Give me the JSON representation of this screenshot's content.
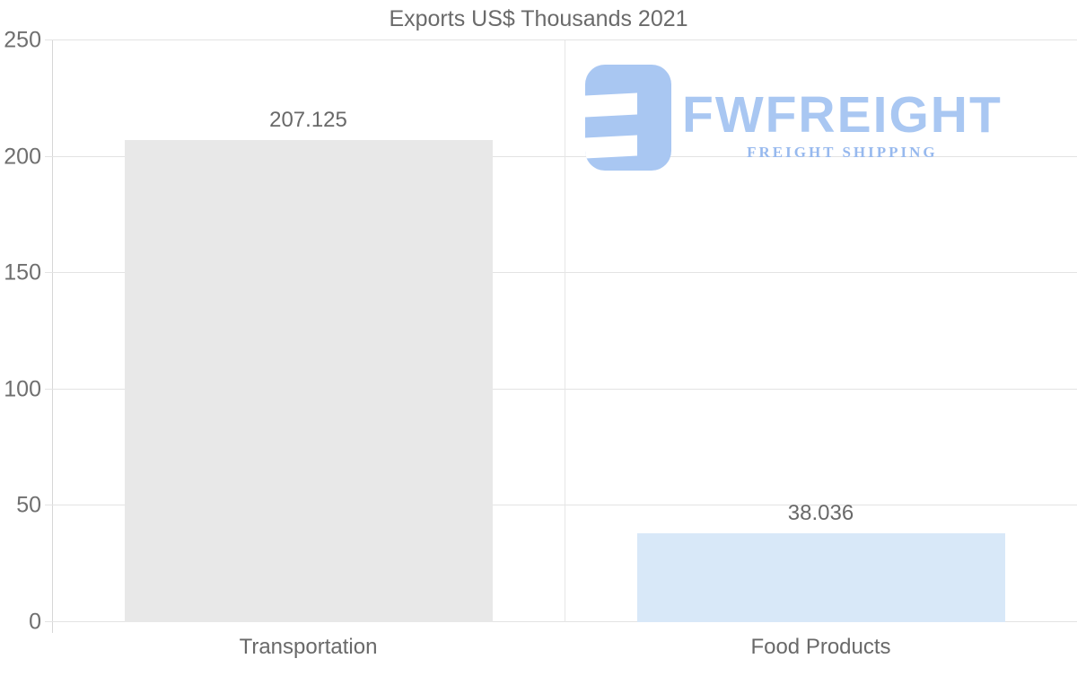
{
  "chart_data": {
    "type": "bar",
    "title": "Exports US$ Thousands 2021",
    "categories": [
      "Transportation",
      "Food Products"
    ],
    "values": [
      207.125,
      38.036
    ],
    "value_labels": [
      "207.125",
      "38.036"
    ],
    "ylim": [
      0,
      250
    ],
    "ytick_values": [
      0,
      50,
      100,
      150,
      200,
      250
    ],
    "yticks": [
      "0",
      "50",
      "100",
      "150",
      "200",
      "250"
    ],
    "xlabel": "",
    "ylabel": "",
    "legend": "none",
    "grid": "horizontal gridlines with short left tick overhangs, plus one vertical column separator",
    "bar_colors": [
      "#e8e8e8",
      "#d8e8f8"
    ],
    "gridline_color": "#e3e3e3",
    "axis_color": "#d6d6d6",
    "text_color": "#696969"
  },
  "logo": {
    "wordmark": "FWFREIGHT",
    "tagline": "FREIGHT SHIPPING",
    "color": "#a9c7f2"
  }
}
